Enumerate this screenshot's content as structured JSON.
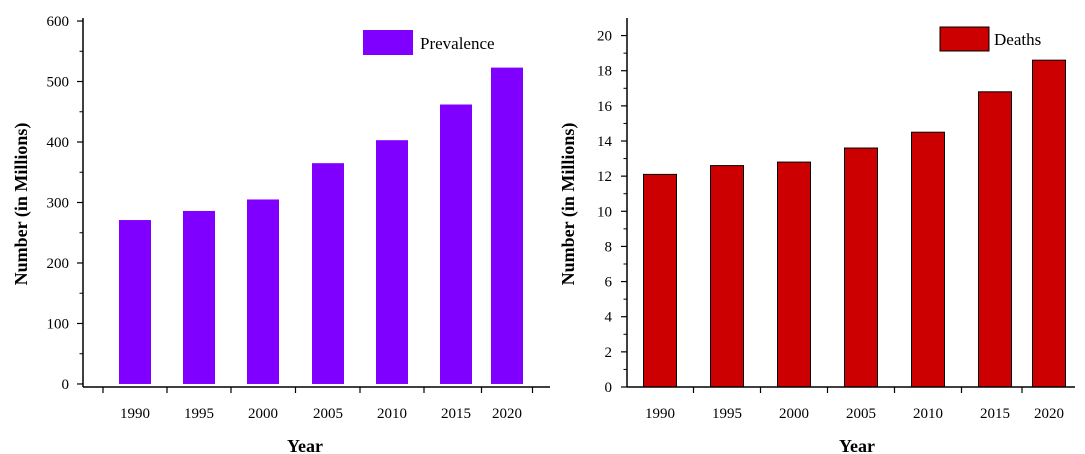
{
  "chart_data": [
    {
      "type": "bar",
      "categories": [
        "1990",
        "1995",
        "2000",
        "2005",
        "2010",
        "2015",
        "2020"
      ],
      "series": [
        {
          "name": "Prevalence",
          "values": [
            271,
            286,
            305,
            365,
            403,
            462,
            523
          ],
          "color": "#8000ff"
        }
      ],
      "xlabel": "Year",
      "ylabel": "Number (in Millions)",
      "ylim": [
        -5,
        605
      ],
      "yticks": [
        0,
        100,
        200,
        300,
        400,
        500,
        600
      ],
      "yticklabels": [
        "0",
        "100",
        "200",
        "300",
        "400",
        "500",
        "600"
      ],
      "legend_position": "top-right",
      "grid": false
    },
    {
      "type": "bar",
      "categories": [
        "1990",
        "1995",
        "2000",
        "2005",
        "2010",
        "2015",
        "2020"
      ],
      "series": [
        {
          "name": "Deaths",
          "values": [
            12.1,
            12.6,
            12.8,
            13.6,
            14.5,
            16.8,
            18.6
          ],
          "color": "#cc0000"
        }
      ],
      "xlabel": "Year",
      "ylabel": "Number (in Millions)",
      "ylim": [
        0,
        21
      ],
      "yticks": [
        0,
        2,
        4,
        6,
        8,
        10,
        12,
        14,
        16,
        18,
        20
      ],
      "yticklabels": [
        "0",
        "2",
        "4",
        "6",
        "8",
        "10",
        "12",
        "14",
        "16",
        "18",
        "20"
      ],
      "legend_position": "top-right",
      "grid": false
    }
  ]
}
